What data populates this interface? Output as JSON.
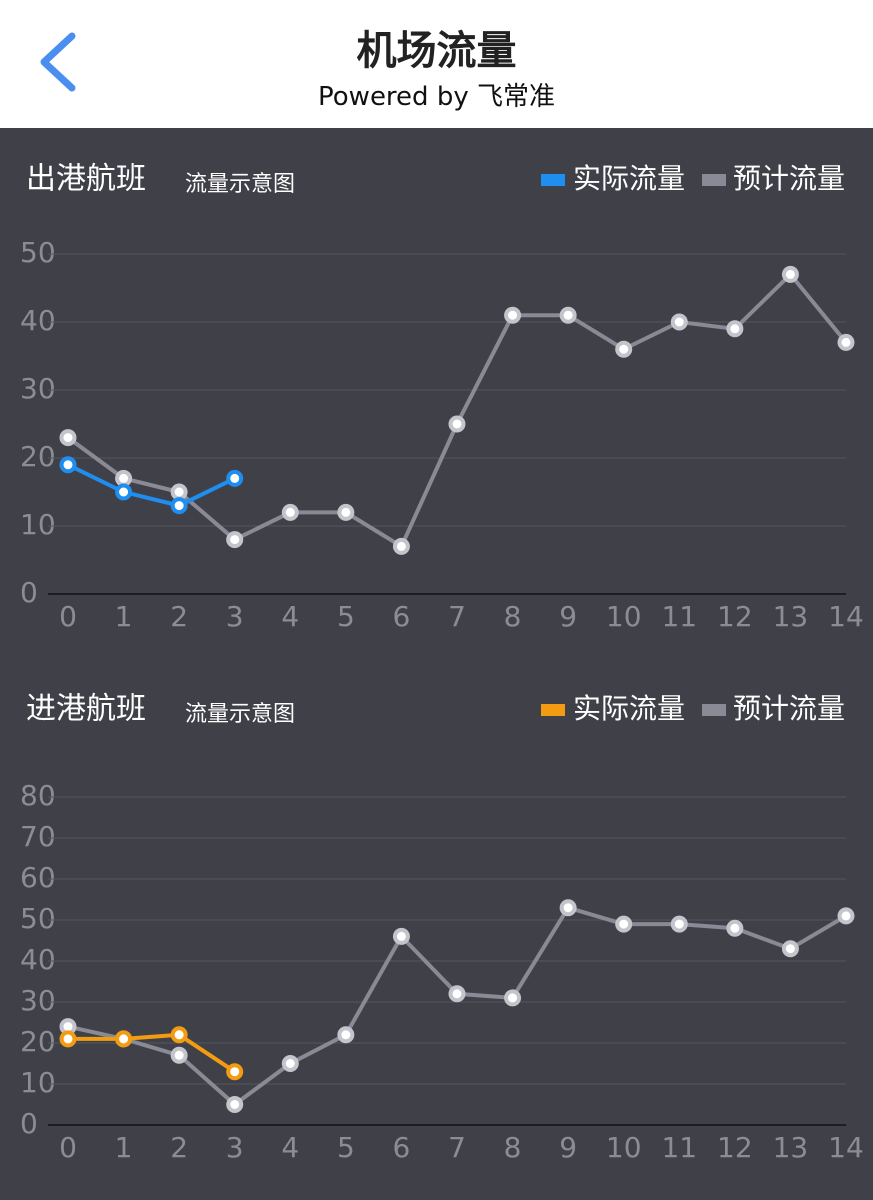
{
  "header": {
    "title": "机场流量",
    "subtitle": "Powered by 飞常准"
  },
  "chart_data": [
    {
      "type": "line",
      "title": "出港航班",
      "subtitle": "流量示意图",
      "x": [
        0,
        1,
        2,
        3,
        4,
        5,
        6,
        7,
        8,
        9,
        10,
        11,
        12,
        13,
        14
      ],
      "series": [
        {
          "name": "实际流量",
          "color": "#1e8ff0",
          "values": [
            19,
            15,
            13,
            17,
            null,
            null,
            null,
            null,
            null,
            null,
            null,
            null,
            null,
            null,
            null
          ]
        },
        {
          "name": "预计流量",
          "color": "#8a8a96",
          "values": [
            23,
            17,
            15,
            8,
            12,
            12,
            7,
            25,
            41,
            41,
            36,
            40,
            39,
            47,
            37
          ]
        }
      ],
      "xlim": [
        0,
        14
      ],
      "xticks": [
        0,
        1,
        2,
        3,
        4,
        5,
        6,
        7,
        8,
        9,
        10,
        11,
        12,
        13,
        14
      ],
      "ylim": [
        0,
        50
      ],
      "yticks": [
        0,
        10,
        20,
        30,
        40,
        50
      ],
      "grid": true,
      "legend": "top-right"
    },
    {
      "type": "line",
      "title": "进港航班",
      "subtitle": "流量示意图",
      "x": [
        0,
        1,
        2,
        3,
        4,
        5,
        6,
        7,
        8,
        9,
        10,
        11,
        12,
        13,
        14
      ],
      "series": [
        {
          "name": "实际流量",
          "color": "#f39c12",
          "values": [
            21,
            21,
            22,
            13,
            null,
            null,
            null,
            null,
            null,
            null,
            null,
            null,
            null,
            null,
            null
          ]
        },
        {
          "name": "预计流量",
          "color": "#8a8a96",
          "values": [
            24,
            21,
            17,
            5,
            15,
            22,
            46,
            32,
            31,
            53,
            49,
            49,
            48,
            43,
            51
          ]
        }
      ],
      "xlim": [
        0,
        14
      ],
      "xticks": [
        0,
        1,
        2,
        3,
        4,
        5,
        6,
        7,
        8,
        9,
        10,
        11,
        12,
        13,
        14
      ],
      "ylim": [
        0,
        80
      ],
      "yticks": [
        0,
        10,
        20,
        30,
        40,
        50,
        60,
        70,
        80
      ],
      "grid": true,
      "legend": "top-right"
    }
  ]
}
